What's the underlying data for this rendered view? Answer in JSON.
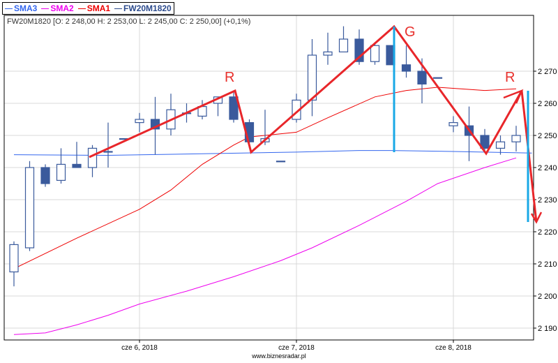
{
  "chart_data": {
    "type": "candlestick",
    "title": "FW20M1820",
    "info_line": "FW20M1820 [O: 2 248,00  H: 2 253,00  L: 2 245,00  C: 2 250,00] (+0,1%)",
    "ylim": [
      2186,
      2287
    ],
    "yticks": [
      2190,
      2200,
      2210,
      2220,
      2230,
      2240,
      2250,
      2260,
      2270
    ],
    "ytick_labels": [
      "2 190",
      "2 200",
      "2 210",
      "2 220",
      "2 230",
      "2 240",
      "2 250",
      "2 260",
      "2 270"
    ],
    "xticks": [
      {
        "index": 8,
        "label": "cze 6, 2018"
      },
      {
        "index": 18,
        "label": "cze 7, 2018"
      },
      {
        "index": 28,
        "label": "cze 8, 2018"
      }
    ],
    "legend": [
      {
        "name": "SMA3",
        "color": "#3366ee"
      },
      {
        "name": "SMA2",
        "color": "#ee00ee"
      },
      {
        "name": "SMA1",
        "color": "#ee0000"
      },
      {
        "name": "FW20M1820",
        "color": "#2b4a8c"
      }
    ],
    "candles": [
      [
        2207.5,
        2217,
        2203,
        2216
      ],
      [
        2215,
        2242,
        2214,
        2240
      ],
      [
        2240,
        2241,
        2234,
        2235
      ],
      [
        2236,
        2246,
        2235,
        2241
      ],
      [
        2241,
        2248,
        2240,
        2240
      ],
      [
        2240,
        2247,
        2237,
        2246
      ],
      [
        2245,
        2254,
        2240,
        2245
      ],
      [
        2249,
        2249,
        2249,
        2249
      ],
      [
        2254,
        2257,
        2251,
        2255
      ],
      [
        2255,
        2262,
        2244,
        2252
      ],
      [
        2252,
        2263,
        2250,
        2258
      ],
      [
        2257,
        2260,
        2254,
        2257
      ],
      [
        2256,
        2261,
        2255,
        2259
      ],
      [
        2260,
        2262,
        2256,
        2262
      ],
      [
        2262,
        2264,
        2254,
        2255
      ],
      [
        2254,
        2255,
        2246,
        2248
      ],
      [
        2248,
        2258,
        2247,
        2249
      ],
      [
        2242,
        2242,
        2242,
        2242
      ],
      [
        2255,
        2263,
        2254,
        2261
      ],
      [
        2261,
        2280,
        2256,
        2275
      ],
      [
        2275,
        2282,
        2272,
        2276
      ],
      [
        2276,
        2284,
        2276,
        2280
      ],
      [
        2280,
        2283,
        2272,
        2273
      ],
      [
        2273,
        2279,
        2272,
        2278
      ],
      [
        2278,
        2278,
        2272,
        2272
      ],
      [
        2272,
        2278,
        2268,
        2270
      ],
      [
        2270,
        2274,
        2260,
        2266
      ],
      [
        2268,
        2268,
        2268,
        2268
      ],
      [
        2253,
        2256,
        2251,
        2254
      ],
      [
        2253,
        2259,
        2242,
        2250
      ],
      [
        2250,
        2252,
        2245,
        2246
      ],
      [
        2246,
        2250,
        2244,
        2248
      ],
      [
        2248,
        2253,
        2245,
        2250
      ]
    ],
    "series": [
      {
        "name": "SMA3",
        "color": "#3366ee",
        "points": [
          [
            0,
            2244
          ],
          [
            6,
            2243.8
          ],
          [
            12,
            2244.3
          ],
          [
            18,
            2244.8
          ],
          [
            22,
            2245.3
          ],
          [
            24,
            2245.3
          ],
          [
            28,
            2245
          ],
          [
            33,
            2244.5
          ]
        ]
      },
      {
        "name": "SMA1",
        "color": "#ee0000",
        "points": [
          [
            0,
            2208.5
          ],
          [
            4,
            2218
          ],
          [
            8,
            2227
          ],
          [
            10,
            2233
          ],
          [
            12,
            2241
          ],
          [
            14,
            2247
          ],
          [
            15,
            2249.5
          ],
          [
            18,
            2251
          ],
          [
            20,
            2255.5
          ],
          [
            23,
            2262
          ],
          [
            25,
            2264
          ],
          [
            27,
            2265
          ],
          [
            30,
            2264
          ],
          [
            32,
            2264.5
          ]
        ]
      },
      {
        "name": "SMA2",
        "color": "#ee00ee",
        "points": [
          [
            0,
            2188
          ],
          [
            2,
            2188.5
          ],
          [
            4,
            2191
          ],
          [
            6,
            2194
          ],
          [
            8,
            2197.5
          ],
          [
            11,
            2201.5
          ],
          [
            14,
            2206
          ],
          [
            17,
            2211
          ],
          [
            19,
            2215
          ],
          [
            22,
            2222
          ],
          [
            25,
            2229.5
          ],
          [
            27,
            2235
          ],
          [
            30,
            2240
          ],
          [
            32,
            2243
          ]
        ]
      }
    ],
    "annotations": [
      "R",
      "G",
      "R"
    ]
  },
  "footer": "www.biznesradar.pl"
}
